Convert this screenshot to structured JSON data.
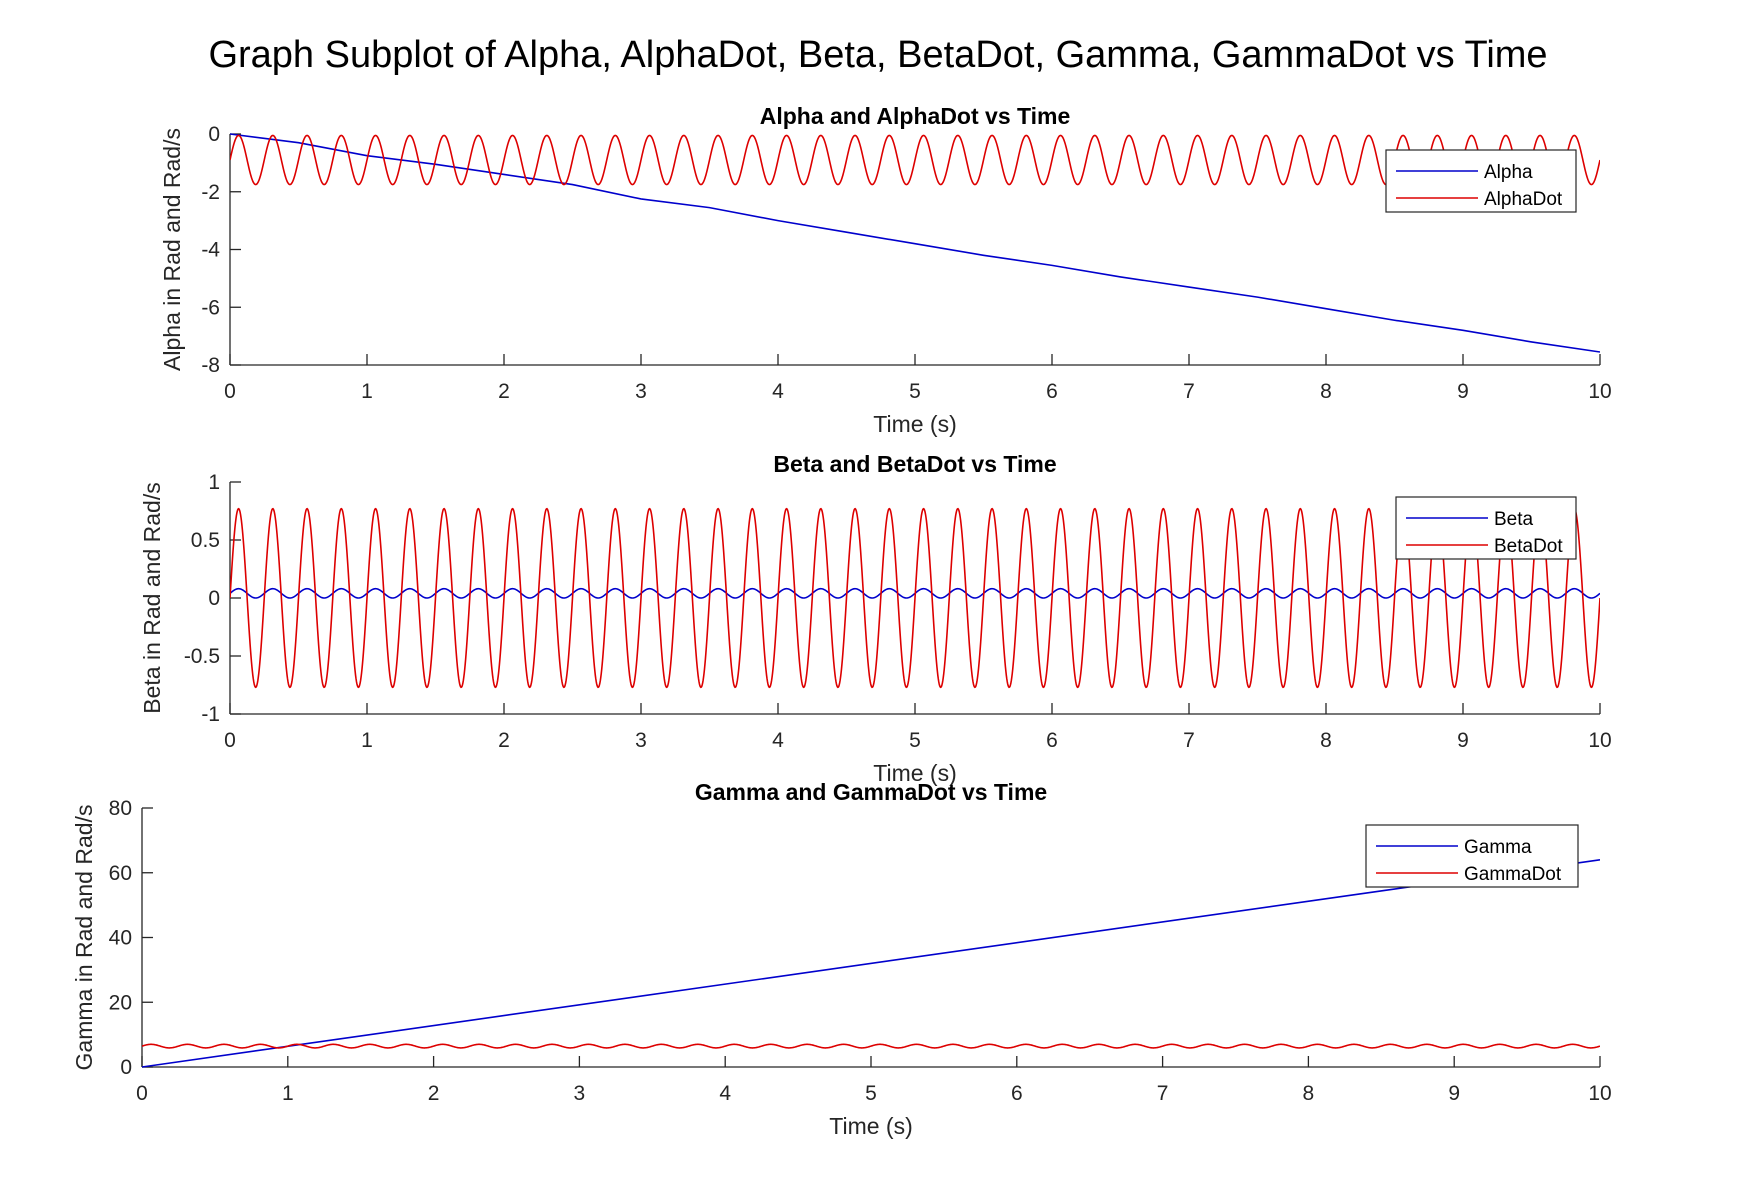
{
  "figure": {
    "title": "Graph Subplot of Alpha, AlphaDot, Beta, BetaDot, Gamma, GammaDot vs Time",
    "background": "#ffffff"
  },
  "colors": {
    "series_blue": "#0000cc",
    "series_red": "#dd0000",
    "axis": "#262626"
  },
  "chart_data": [
    {
      "type": "line",
      "title": "Alpha and AlphaDot vs Time",
      "xlabel": "Time (s)",
      "ylabel": "Alpha in Rad and Rad/s",
      "xlim": [
        0,
        10
      ],
      "ylim": [
        -8,
        0
      ],
      "xticks": [
        0,
        1,
        2,
        3,
        4,
        5,
        6,
        7,
        8,
        9,
        10
      ],
      "yticks": [
        0,
        -2,
        -4,
        -6,
        -8
      ],
      "grid": false,
      "legend_position": "top-right",
      "series": [
        {
          "name": "Alpha",
          "color": "#0000cc",
          "x": [
            0,
            0.5,
            1,
            1.5,
            2,
            2.5,
            3,
            3.5,
            4,
            4.5,
            5,
            5.5,
            6,
            6.5,
            7,
            7.5,
            8,
            8.5,
            9,
            9.5,
            10
          ],
          "y": [
            0,
            -0.3,
            -0.75,
            -1.05,
            -1.4,
            -1.75,
            -2.25,
            -2.55,
            -3.0,
            -3.4,
            -3.8,
            -4.2,
            -4.55,
            -4.95,
            -5.3,
            -5.65,
            -6.05,
            -6.45,
            -6.8,
            -7.2,
            -7.55
          ]
        },
        {
          "name": "AlphaDot",
          "color": "#dd0000",
          "periodic": {
            "period": 0.25,
            "min": -1.75,
            "max": -0.05,
            "x_start": 0,
            "x_end": 10
          }
        }
      ]
    },
    {
      "type": "line",
      "title": "Beta and BetaDot vs Time",
      "xlabel": "Time (s)",
      "ylabel": "Beta in Rad and Rad/s",
      "xlim": [
        0,
        10
      ],
      "ylim": [
        -1,
        1
      ],
      "xticks": [
        0,
        1,
        2,
        3,
        4,
        5,
        6,
        7,
        8,
        9,
        10
      ],
      "yticks": [
        1,
        0.5,
        0,
        -0.5,
        -1
      ],
      "grid": false,
      "legend_position": "top-right",
      "series": [
        {
          "name": "Beta",
          "color": "#0000cc",
          "periodic": {
            "period": 0.25,
            "min": 0.0,
            "max": 0.08,
            "x_start": 0,
            "x_end": 10
          }
        },
        {
          "name": "BetaDot",
          "color": "#dd0000",
          "periodic": {
            "period": 0.25,
            "min": -0.77,
            "max": 0.77,
            "x_start": 0,
            "x_end": 10
          }
        }
      ]
    },
    {
      "type": "line",
      "title": "Gamma and GammaDot vs Time",
      "xlabel": "Time (s)",
      "ylabel": "Gamma in Rad and Rad/s",
      "xlim": [
        0,
        10
      ],
      "ylim": [
        0,
        80
      ],
      "xticks": [
        0,
        1,
        2,
        3,
        4,
        5,
        6,
        7,
        8,
        9,
        10
      ],
      "yticks": [
        80,
        60,
        40,
        20,
        0
      ],
      "grid": false,
      "legend_position": "top-right",
      "series": [
        {
          "name": "Gamma",
          "color": "#0000cc",
          "x": [
            0,
            10
          ],
          "y": [
            0,
            64
          ]
        },
        {
          "name": "GammaDot",
          "color": "#dd0000",
          "periodic": {
            "period": 0.25,
            "min": 5.9,
            "max": 7.0,
            "x_start": 0,
            "x_end": 10
          }
        }
      ]
    }
  ]
}
